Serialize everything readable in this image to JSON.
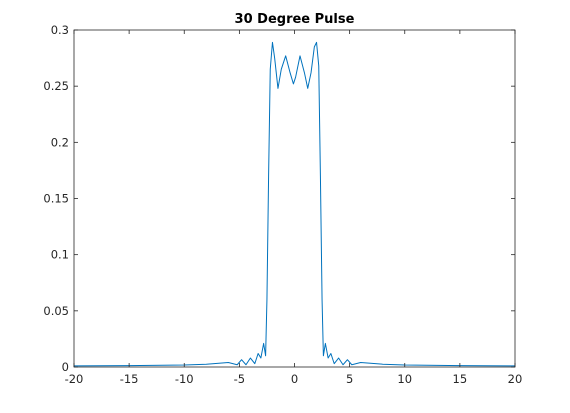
{
  "chart_data": {
    "type": "line",
    "title": "30 Degree Pulse",
    "xlabel": "",
    "ylabel": "",
    "xlim": [
      -20,
      20
    ],
    "ylim": [
      0,
      0.3
    ],
    "x_ticks": [
      -20,
      -15,
      -10,
      -5,
      0,
      5,
      10,
      15,
      20
    ],
    "x_tick_labels": [
      "-20",
      "-15",
      "-10",
      "-5",
      "0",
      "5",
      "10",
      "15",
      "20"
    ],
    "y_ticks": [
      0,
      0.05,
      0.1,
      0.15,
      0.2,
      0.25,
      0.3
    ],
    "y_tick_labels": [
      "0",
      "0.05",
      "0.1",
      "0.15",
      "0.2",
      "0.25",
      "0.3"
    ],
    "grid": false,
    "box": true,
    "series": [
      {
        "color": "#0072BD",
        "points": [
          [
            -20,
            0.001
          ],
          [
            -15,
            0.0012
          ],
          [
            -10,
            0.0018
          ],
          [
            -8,
            0.0025
          ],
          [
            -6,
            0.004
          ],
          [
            -5.2,
            0.002
          ],
          [
            -4.8,
            0.0065
          ],
          [
            -4.4,
            0.002
          ],
          [
            -4.0,
            0.008
          ],
          [
            -3.6,
            0.003
          ],
          [
            -3.3,
            0.012
          ],
          [
            -3.05,
            0.008
          ],
          [
            -2.8,
            0.021
          ],
          [
            -2.62,
            0.01
          ],
          [
            -2.5,
            0.06
          ],
          [
            -2.35,
            0.17
          ],
          [
            -2.2,
            0.265
          ],
          [
            -2.0,
            0.289
          ],
          [
            -1.8,
            0.275
          ],
          [
            -1.5,
            0.248
          ],
          [
            -1.2,
            0.265
          ],
          [
            -0.8,
            0.277
          ],
          [
            -0.4,
            0.262
          ],
          [
            -0.1,
            0.252
          ],
          [
            0.1,
            0.258
          ],
          [
            0.5,
            0.277
          ],
          [
            0.9,
            0.262
          ],
          [
            1.2,
            0.248
          ],
          [
            1.5,
            0.262
          ],
          [
            1.8,
            0.285
          ],
          [
            2.0,
            0.289
          ],
          [
            2.2,
            0.268
          ],
          [
            2.35,
            0.17
          ],
          [
            2.5,
            0.06
          ],
          [
            2.62,
            0.01
          ],
          [
            2.8,
            0.021
          ],
          [
            3.05,
            0.008
          ],
          [
            3.3,
            0.012
          ],
          [
            3.6,
            0.003
          ],
          [
            4.0,
            0.008
          ],
          [
            4.4,
            0.002
          ],
          [
            4.8,
            0.0065
          ],
          [
            5.2,
            0.002
          ],
          [
            6,
            0.004
          ],
          [
            8,
            0.0025
          ],
          [
            10,
            0.0018
          ],
          [
            15,
            0.0012
          ],
          [
            20,
            0.001
          ]
        ]
      }
    ]
  }
}
